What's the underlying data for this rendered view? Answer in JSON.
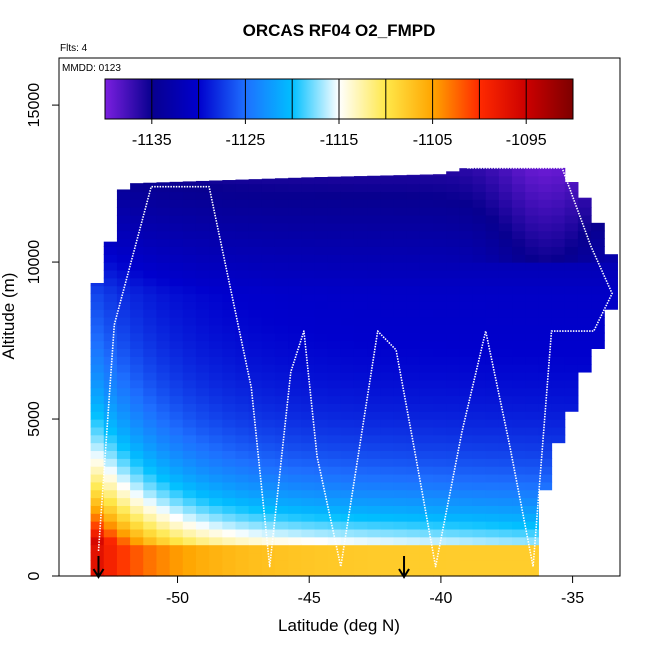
{
  "chart_data": {
    "type": "heatmap",
    "title": "ORCAS RF04 O2_FMPD",
    "annotations": [
      "Flts: 4",
      "MMDD: 0123"
    ],
    "xlabel": "Latitude (deg N)",
    "ylabel": "Altitude (m)",
    "xlim": [
      -54.5,
      -33.2
    ],
    "ylim": [
      0,
      16500
    ],
    "x_ticks": [
      -50,
      -45,
      -40,
      -35
    ],
    "y_ticks": [
      0,
      5000,
      10000,
      15000
    ],
    "colorbar": {
      "min": -1140,
      "max": -1090,
      "ticks": [
        -1135,
        -1125,
        -1115,
        -1105,
        -1095
      ],
      "stops": [
        "#7b1fe0",
        "#08008f",
        "#0000cd",
        "#1e6fff",
        "#00bfff",
        "#ffffff",
        "#ffe84a",
        "#ffa500",
        "#ff2a00",
        "#cc0000",
        "#7d0000"
      ]
    },
    "field": {
      "dx": 0.5,
      "dz": 250,
      "lat_range": [
        -53.3,
        -33.2
      ],
      "surface_lat_range": [
        -53.3,
        -36.5
      ],
      "top_profile": [
        [
          -53.3,
          8000
        ],
        [
          -53.0,
          9600
        ],
        [
          -52.4,
          11000
        ],
        [
          -52.0,
          12500
        ],
        [
          -48.5,
          12600
        ],
        [
          -45.0,
          12700
        ],
        [
          -40.0,
          12800
        ],
        [
          -39.0,
          13000
        ],
        [
          -35.5,
          13000
        ],
        [
          -34.5,
          12000
        ],
        [
          -33.6,
          10500
        ],
        [
          -33.3,
          9000
        ],
        [
          -33.9,
          7500
        ],
        [
          -34.8,
          5800
        ],
        [
          -35.6,
          4000
        ],
        [
          -36.3,
          2000
        ],
        [
          -36.5,
          1000
        ]
      ]
    },
    "flight_track": [
      [
        -53.0,
        800
      ],
      [
        -52.4,
        8000
      ],
      [
        -51.0,
        12400
      ],
      [
        -48.8,
        12400
      ],
      [
        -47.2,
        6000
      ],
      [
        -46.5,
        300
      ],
      [
        -45.7,
        6500
      ],
      [
        -45.2,
        7800
      ],
      [
        -44.7,
        3800
      ],
      [
        -43.8,
        300
      ],
      [
        -42.4,
        7800
      ],
      [
        -41.7,
        7200
      ],
      [
        -41.0,
        4000
      ],
      [
        -40.2,
        300
      ],
      [
        -39.2,
        4600
      ],
      [
        -38.3,
        7800
      ],
      [
        -37.4,
        4200
      ],
      [
        -36.5,
        300
      ],
      [
        -35.8,
        7800
      ],
      [
        -34.2,
        7800
      ],
      [
        -33.5,
        9000
      ],
      [
        -34.3,
        10500
      ],
      [
        -35.4,
        13000
      ],
      [
        -39.0,
        13000
      ]
    ],
    "markers": [
      -53.0,
      -41.4
    ]
  }
}
